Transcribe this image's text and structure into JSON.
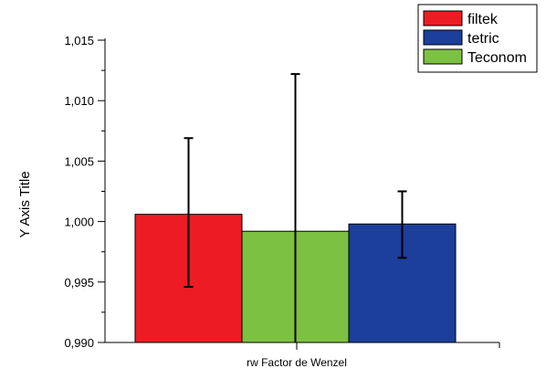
{
  "chart_data": {
    "type": "bar",
    "title": "",
    "xlabel": "rw Factor de Wenzel",
    "ylabel": "Y Axis Title",
    "ylim": [
      0.99,
      1.015
    ],
    "yticks": [
      "0,990",
      "0,995",
      "1,000",
      "1,005",
      "1,010",
      "1,015"
    ],
    "grid": false,
    "legend_position": "top-right",
    "legend": [
      {
        "name": "filtek",
        "color": "#ED1C24"
      },
      {
        "name": "tetric",
        "color": "#1B3F9A"
      },
      {
        "name": "Teconom",
        "color": "#7DC142"
      }
    ],
    "bars": [
      {
        "series": "filtek",
        "value": 1.0006,
        "error_low": 0.9946,
        "error_high": 1.0069,
        "color": "#ED1C24"
      },
      {
        "series": "Teconom",
        "value": 0.9992,
        "error_low": 0.99,
        "error_high": 1.0122,
        "color": "#7DC142"
      },
      {
        "series": "tetric",
        "value": 0.9998,
        "error_low": 0.997,
        "error_high": 1.0025,
        "color": "#1B3F9A"
      }
    ]
  }
}
